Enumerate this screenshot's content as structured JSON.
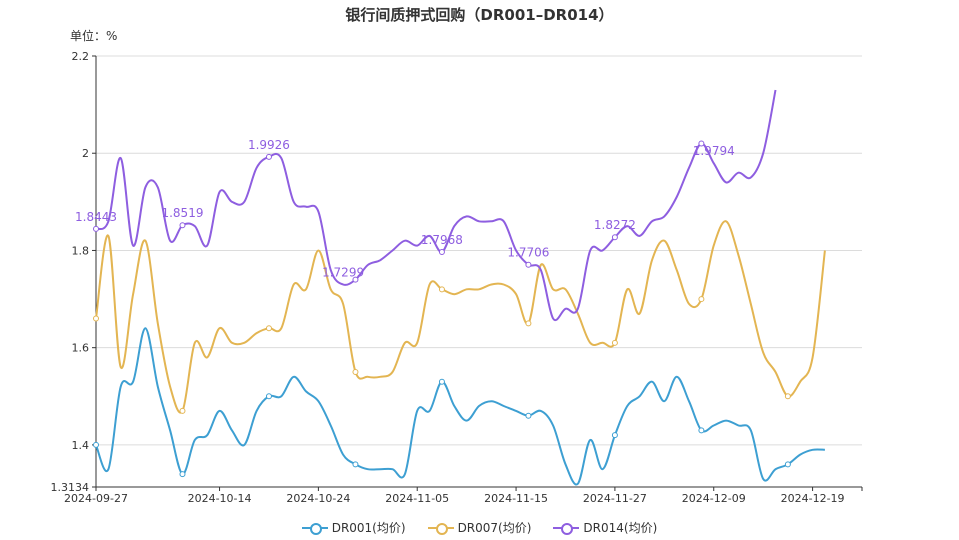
{
  "chart_data": {
    "type": "line",
    "title": "银行间质押式回购（DR001–DR014）",
    "unit_label": "单位：%",
    "x_tick_labels": [
      "2024-09-27",
      "2024-10-14",
      "2024-10-24",
      "2024-11-05",
      "2024-11-15",
      "2024-11-27",
      "2024-12-09",
      "2024-12-19"
    ],
    "x_tick_index": [
      0,
      10,
      18,
      26,
      34,
      42,
      50,
      58
    ],
    "y_ticks": [
      1.3134,
      1.4,
      1.6,
      1.8,
      2,
      2.2
    ],
    "y_tick_labels": [
      "1.3134",
      "1.4",
      "1.6",
      "1.8",
      "2",
      "2.2"
    ],
    "ylim": [
      1.3134,
      2.2
    ],
    "n_points": 63,
    "series": [
      {
        "name": "DR001(均价)",
        "color": "#3d9fd2",
        "values": [
          1.4,
          1.35,
          1.52,
          1.53,
          1.64,
          1.52,
          1.43,
          1.34,
          1.41,
          1.42,
          1.47,
          1.43,
          1.4,
          1.47,
          1.5,
          1.5,
          1.54,
          1.51,
          1.49,
          1.44,
          1.38,
          1.36,
          1.35,
          1.35,
          1.35,
          1.34,
          1.47,
          1.47,
          1.53,
          1.48,
          1.45,
          1.48,
          1.49,
          1.48,
          1.47,
          1.46,
          1.47,
          1.44,
          1.36,
          1.32,
          1.41,
          1.35,
          1.42,
          1.48,
          1.5,
          1.53,
          1.49,
          1.54,
          1.49,
          1.43,
          1.44,
          1.45,
          1.44,
          1.43,
          1.33,
          1.35,
          1.36,
          1.38,
          1.39,
          1.39
        ]
      },
      {
        "name": "DR007(均价)",
        "color": "#e3b552",
        "values": [
          1.66,
          1.83,
          1.56,
          1.71,
          1.82,
          1.65,
          1.52,
          1.47,
          1.61,
          1.58,
          1.64,
          1.61,
          1.61,
          1.63,
          1.64,
          1.64,
          1.73,
          1.72,
          1.8,
          1.72,
          1.69,
          1.55,
          1.54,
          1.54,
          1.55,
          1.61,
          1.61,
          1.73,
          1.72,
          1.71,
          1.72,
          1.72,
          1.73,
          1.73,
          1.71,
          1.65,
          1.77,
          1.72,
          1.72,
          1.67,
          1.61,
          1.61,
          1.61,
          1.72,
          1.67,
          1.78,
          1.82,
          1.76,
          1.69,
          1.7,
          1.81,
          1.86,
          1.79,
          1.69,
          1.59,
          1.55,
          1.5,
          1.53,
          1.58,
          1.8
        ]
      },
      {
        "name": "DR014(均价)",
        "color": "#8e5ee0",
        "values": [
          1.8443,
          1.86,
          1.99,
          1.81,
          1.93,
          1.93,
          1.82,
          1.8519,
          1.85,
          1.81,
          1.92,
          1.9,
          1.9,
          1.97,
          1.9926,
          1.99,
          1.9,
          1.89,
          1.88,
          1.76,
          1.7299,
          1.74,
          1.77,
          1.78,
          1.8,
          1.82,
          1.81,
          1.83,
          1.7968,
          1.85,
          1.87,
          1.86,
          1.86,
          1.86,
          1.8,
          1.7706,
          1.76,
          1.66,
          1.68,
          1.68,
          1.8,
          1.8,
          1.8272,
          1.85,
          1.83,
          1.86,
          1.87,
          1.91,
          1.97,
          2.02,
          1.9794,
          1.94,
          1.96,
          1.95,
          2.0,
          2.13
        ]
      }
    ],
    "data_labels": [
      {
        "series": 2,
        "index": 0,
        "text": "1.8443"
      },
      {
        "series": 2,
        "index": 7,
        "text": "1.8519"
      },
      {
        "series": 2,
        "index": 14,
        "text": "1.9926"
      },
      {
        "series": 2,
        "index": 20,
        "text": "1.7299"
      },
      {
        "series": 2,
        "index": 28,
        "text": "1.7968"
      },
      {
        "series": 2,
        "index": 35,
        "text": "1.7706"
      },
      {
        "series": 2,
        "index": 42,
        "text": "1.8272"
      },
      {
        "series": 2,
        "index": 50,
        "text": "1.9794"
      }
    ]
  }
}
